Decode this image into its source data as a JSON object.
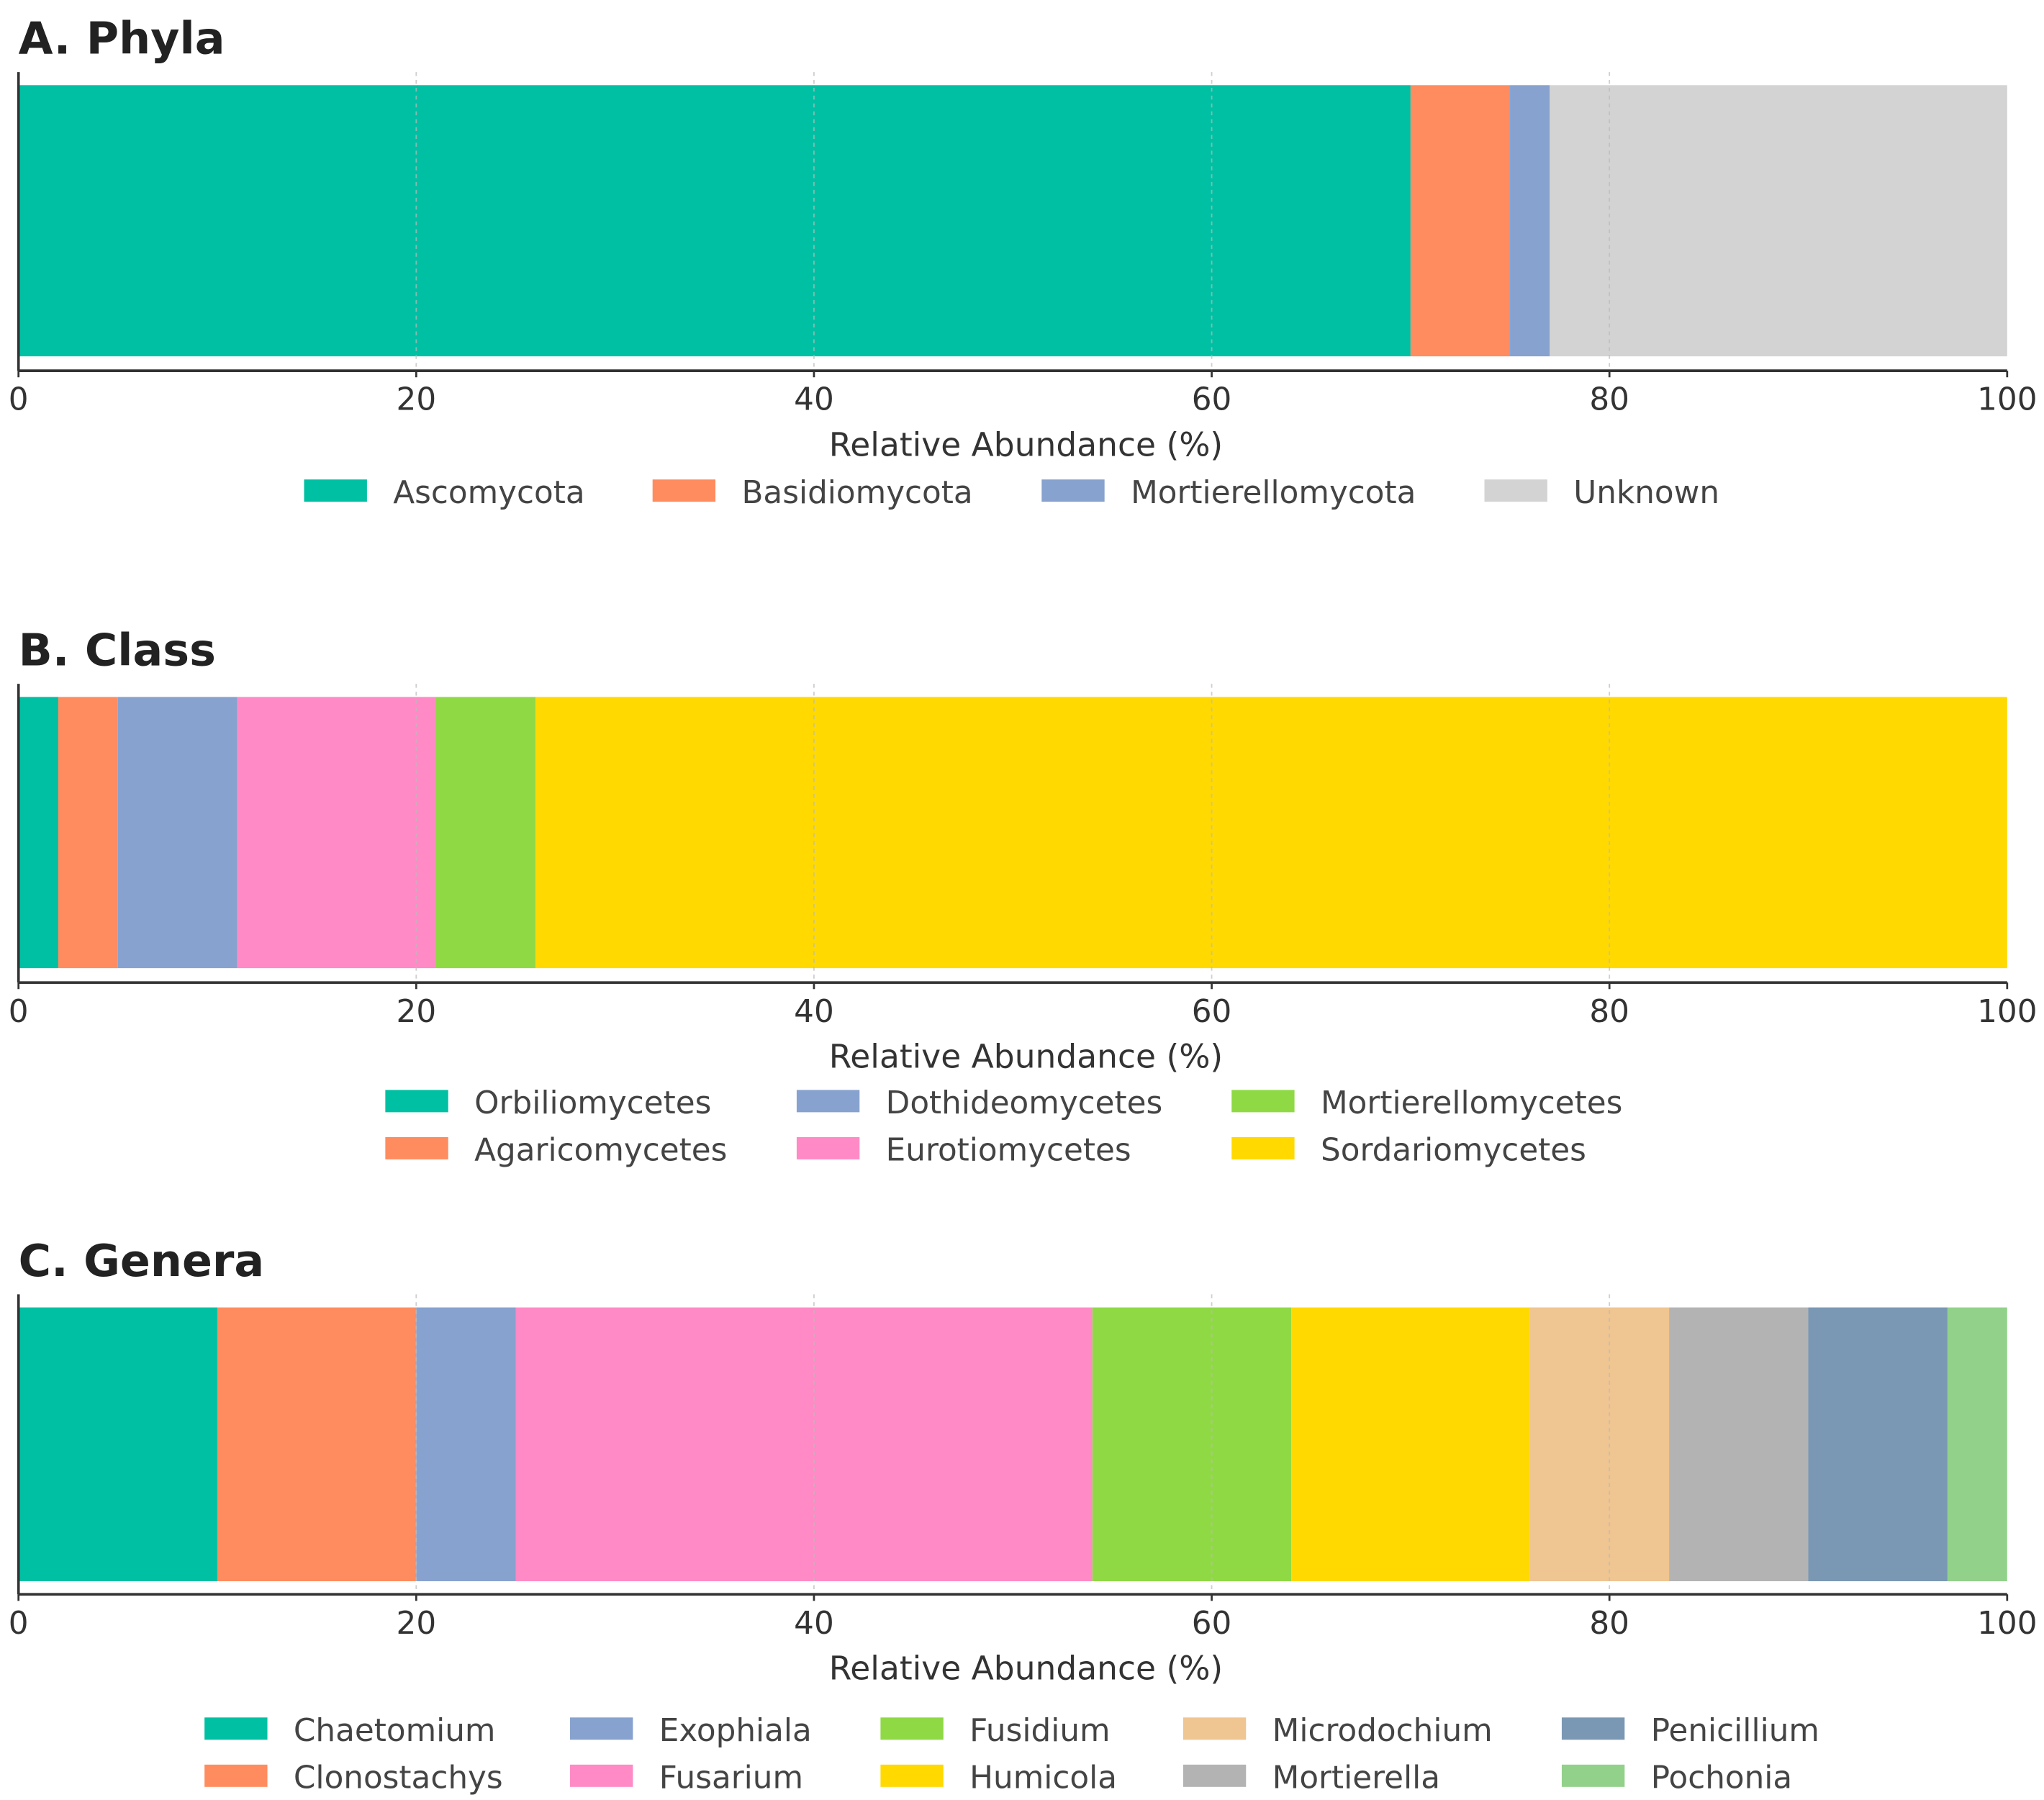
{
  "chart_data": [
    {
      "type": "bar",
      "orientation": "horizontal-stacked",
      "title": "A. Phyla",
      "xlabel": "Relative Abundance (%)",
      "xlim": [
        0,
        100
      ],
      "xticks": [
        "0",
        "20",
        "40",
        "60",
        "80",
        "100"
      ],
      "grid": "vertical dashed",
      "legend_placement": "bottom-center",
      "legend_ncol": 4,
      "series": [
        {
          "name": "Ascomycota",
          "value": 70,
          "color": "#00C0A3"
        },
        {
          "name": "Basidiomycota",
          "value": 5,
          "color": "#FF8C5F"
        },
        {
          "name": "Mortierellomycota",
          "value": 2,
          "color": "#87A2CE"
        },
        {
          "name": "Unknown",
          "value": 23,
          "color": "#D3D3D3"
        }
      ]
    },
    {
      "type": "bar",
      "orientation": "horizontal-stacked",
      "title": "B. Class",
      "xlabel": "Relative Abundance (%)",
      "xlim": [
        0,
        100
      ],
      "xticks": [
        "0",
        "20",
        "40",
        "60",
        "80",
        "100"
      ],
      "grid": "vertical dashed",
      "legend_placement": "bottom-center",
      "legend_ncol": 3,
      "series": [
        {
          "name": "Orbiliomycetes",
          "value": 2,
          "color": "#00C0A3"
        },
        {
          "name": "Agaricomycetes",
          "value": 3,
          "color": "#FF8C5F"
        },
        {
          "name": "Dothideomycetes",
          "value": 6,
          "color": "#87A2CE"
        },
        {
          "name": "Eurotiomycetes",
          "value": 10,
          "color": "#FF8AC5"
        },
        {
          "name": "Mortierellomycetes",
          "value": 5,
          "color": "#8FD945"
        },
        {
          "name": "Sordariomycetes",
          "value": 74,
          "color": "#FFD900"
        }
      ]
    },
    {
      "type": "bar",
      "orientation": "horizontal-stacked",
      "title": "C. Genera",
      "xlabel": "Relative Abundance (%)",
      "xlim": [
        0,
        100
      ],
      "xticks": [
        "0",
        "20",
        "40",
        "60",
        "80",
        "100"
      ],
      "grid": "vertical dashed",
      "legend_placement": "bottom-center",
      "legend_ncol": 5,
      "series": [
        {
          "name": "Chaetomium",
          "value": 10,
          "color": "#00C0A3"
        },
        {
          "name": "Clonostachys",
          "value": 10,
          "color": "#FF8C5F"
        },
        {
          "name": "Exophiala",
          "value": 5,
          "color": "#87A2CE"
        },
        {
          "name": "Fusarium",
          "value": 29,
          "color": "#FF8AC5"
        },
        {
          "name": "Fusidium",
          "value": 10,
          "color": "#8FD945"
        },
        {
          "name": "Humicola",
          "value": 12,
          "color": "#FFD900"
        },
        {
          "name": "Microdochium",
          "value": 7,
          "color": "#EFC591"
        },
        {
          "name": "Mortierella",
          "value": 7,
          "color": "#B3B3B3"
        },
        {
          "name": "Penicillium",
          "value": 7,
          "color": "#7A98B4"
        },
        {
          "name": "Pochonia",
          "value": 3,
          "color": "#92D18A"
        }
      ]
    }
  ]
}
